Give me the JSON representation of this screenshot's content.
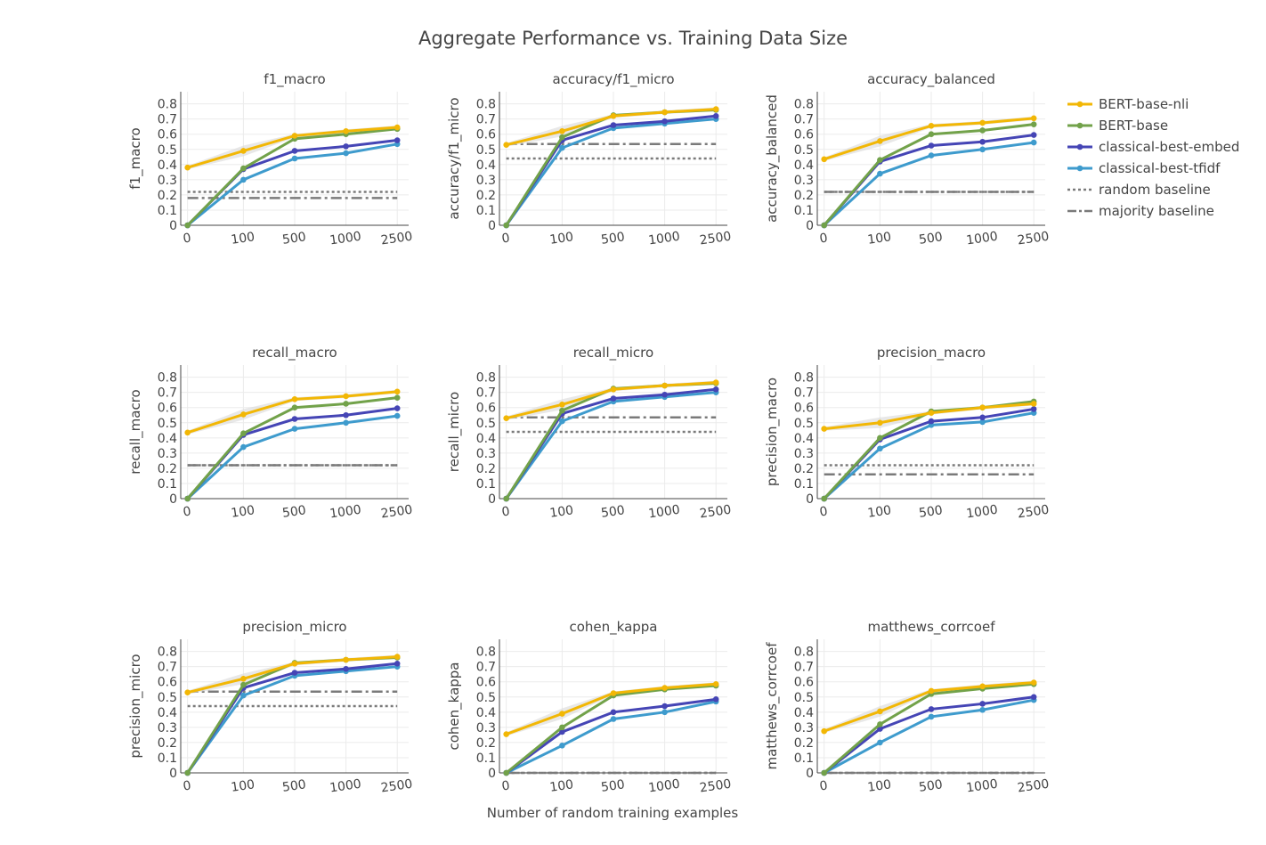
{
  "title": "Aggregate Performance vs. Training Data Size",
  "xlabel": "Number of random training examples",
  "colors": {
    "BERT-base-nli": "#f2b705",
    "BERT-base": "#72a24a",
    "classical-best-embed": "#4545b5",
    "classical-best-tfidf": "#3e9bcd",
    "random baseline": "#7a7a7a",
    "majority baseline": "#7a7a7a",
    "band": "#d9d9d9"
  },
  "legend": [
    {
      "name": "BERT-base-nli",
      "style": "line-marker"
    },
    {
      "name": "BERT-base",
      "style": "line-marker"
    },
    {
      "name": "classical-best-embed",
      "style": "line-marker"
    },
    {
      "name": "classical-best-tfidf",
      "style": "line-marker"
    },
    {
      "name": "random baseline",
      "style": "dot"
    },
    {
      "name": "majority baseline",
      "style": "dashdot"
    }
  ],
  "chart_data": [
    {
      "type": "line",
      "title": "f1_macro",
      "ylabel": "f1_macro",
      "categories": [
        "0",
        "100",
        "500",
        "1000",
        "2500"
      ],
      "ylim": [
        0,
        0.88
      ],
      "yticks": [
        "0",
        "0.1",
        "0.2",
        "0.3",
        "0.4",
        "0.5",
        "0.6",
        "0.7",
        "0.8"
      ],
      "series": [
        {
          "name": "BERT-base-nli",
          "values": [
            0.38,
            0.49,
            0.59,
            0.62,
            0.645
          ]
        },
        {
          "name": "BERT-base",
          "values": [
            0.0,
            0.375,
            0.57,
            0.6,
            0.635
          ]
        },
        {
          "name": "classical-best-embed",
          "values": [
            0.0,
            0.37,
            0.49,
            0.52,
            0.56
          ]
        },
        {
          "name": "classical-best-tfidf",
          "values": [
            0.0,
            0.3,
            0.44,
            0.475,
            0.535
          ]
        }
      ],
      "random_baseline": 0.22,
      "majority_baseline": 0.18
    },
    {
      "type": "line",
      "title": "accuracy/f1_micro",
      "ylabel": "accuracy/f1_micro",
      "categories": [
        "0",
        "100",
        "500",
        "1000",
        "2500"
      ],
      "ylim": [
        0,
        0.88
      ],
      "yticks": [
        "0",
        "0.1",
        "0.2",
        "0.3",
        "0.4",
        "0.5",
        "0.6",
        "0.7",
        "0.8"
      ],
      "series": [
        {
          "name": "BERT-base-nli",
          "values": [
            0.53,
            0.62,
            0.72,
            0.745,
            0.765
          ]
        },
        {
          "name": "BERT-base",
          "values": [
            0.0,
            0.58,
            0.725,
            0.745,
            0.76
          ]
        },
        {
          "name": "classical-best-embed",
          "values": [
            0.0,
            0.56,
            0.66,
            0.685,
            0.72
          ]
        },
        {
          "name": "classical-best-tfidf",
          "values": [
            0.0,
            0.51,
            0.64,
            0.67,
            0.7
          ]
        }
      ],
      "random_baseline": 0.44,
      "majority_baseline": 0.535
    },
    {
      "type": "line",
      "title": "accuracy_balanced",
      "ylabel": "accuracy_balanced",
      "categories": [
        "0",
        "100",
        "500",
        "1000",
        "2500"
      ],
      "ylim": [
        0,
        0.88
      ],
      "yticks": [
        "0",
        "0.1",
        "0.2",
        "0.3",
        "0.4",
        "0.5",
        "0.6",
        "0.7",
        "0.8"
      ],
      "series": [
        {
          "name": "BERT-base-nli",
          "values": [
            0.435,
            0.555,
            0.655,
            0.675,
            0.705
          ]
        },
        {
          "name": "BERT-base",
          "values": [
            0.0,
            0.43,
            0.6,
            0.625,
            0.665
          ]
        },
        {
          "name": "classical-best-embed",
          "values": [
            0.0,
            0.42,
            0.525,
            0.55,
            0.595
          ]
        },
        {
          "name": "classical-best-tfidf",
          "values": [
            0.0,
            0.34,
            0.46,
            0.5,
            0.545
          ]
        }
      ],
      "random_baseline": 0.22,
      "majority_baseline": 0.22
    },
    {
      "type": "line",
      "title": "recall_macro",
      "ylabel": "recall_macro",
      "categories": [
        "0",
        "100",
        "500",
        "1000",
        "2500"
      ],
      "ylim": [
        0,
        0.88
      ],
      "yticks": [
        "0",
        "0.1",
        "0.2",
        "0.3",
        "0.4",
        "0.5",
        "0.6",
        "0.7",
        "0.8"
      ],
      "series": [
        {
          "name": "BERT-base-nli",
          "values": [
            0.435,
            0.555,
            0.655,
            0.675,
            0.705
          ]
        },
        {
          "name": "BERT-base",
          "values": [
            0.0,
            0.43,
            0.6,
            0.625,
            0.665
          ]
        },
        {
          "name": "classical-best-embed",
          "values": [
            0.0,
            0.42,
            0.525,
            0.55,
            0.595
          ]
        },
        {
          "name": "classical-best-tfidf",
          "values": [
            0.0,
            0.34,
            0.46,
            0.5,
            0.545
          ]
        }
      ],
      "random_baseline": 0.22,
      "majority_baseline": 0.22
    },
    {
      "type": "line",
      "title": "recall_micro",
      "ylabel": "recall_micro",
      "categories": [
        "0",
        "100",
        "500",
        "1000",
        "2500"
      ],
      "ylim": [
        0,
        0.88
      ],
      "yticks": [
        "0",
        "0.1",
        "0.2",
        "0.3",
        "0.4",
        "0.5",
        "0.6",
        "0.7",
        "0.8"
      ],
      "series": [
        {
          "name": "BERT-base-nli",
          "values": [
            0.53,
            0.62,
            0.72,
            0.745,
            0.765
          ]
        },
        {
          "name": "BERT-base",
          "values": [
            0.0,
            0.58,
            0.725,
            0.745,
            0.76
          ]
        },
        {
          "name": "classical-best-embed",
          "values": [
            0.0,
            0.56,
            0.66,
            0.685,
            0.72
          ]
        },
        {
          "name": "classical-best-tfidf",
          "values": [
            0.0,
            0.51,
            0.64,
            0.67,
            0.7
          ]
        }
      ],
      "random_baseline": 0.44,
      "majority_baseline": 0.535
    },
    {
      "type": "line",
      "title": "precision_macro",
      "ylabel": "precision_macro",
      "categories": [
        "0",
        "100",
        "500",
        "1000",
        "2500"
      ],
      "ylim": [
        0,
        0.88
      ],
      "yticks": [
        "0",
        "0.1",
        "0.2",
        "0.3",
        "0.4",
        "0.5",
        "0.6",
        "0.7",
        "0.8"
      ],
      "series": [
        {
          "name": "BERT-base-nli",
          "values": [
            0.46,
            0.5,
            0.565,
            0.6,
            0.625
          ]
        },
        {
          "name": "BERT-base",
          "values": [
            0.0,
            0.4,
            0.575,
            0.6,
            0.64
          ]
        },
        {
          "name": "classical-best-embed",
          "values": [
            0.0,
            0.39,
            0.51,
            0.535,
            0.59
          ]
        },
        {
          "name": "classical-best-tfidf",
          "values": [
            0.0,
            0.33,
            0.485,
            0.505,
            0.565
          ]
        }
      ],
      "random_baseline": 0.22,
      "majority_baseline": 0.16
    },
    {
      "type": "line",
      "title": "precision_micro",
      "ylabel": "precision_micro",
      "categories": [
        "0",
        "100",
        "500",
        "1000",
        "2500"
      ],
      "ylim": [
        0,
        0.88
      ],
      "yticks": [
        "0",
        "0.1",
        "0.2",
        "0.3",
        "0.4",
        "0.5",
        "0.6",
        "0.7",
        "0.8"
      ],
      "series": [
        {
          "name": "BERT-base-nli",
          "values": [
            0.53,
            0.62,
            0.72,
            0.745,
            0.765
          ]
        },
        {
          "name": "BERT-base",
          "values": [
            0.0,
            0.58,
            0.725,
            0.745,
            0.76
          ]
        },
        {
          "name": "classical-best-embed",
          "values": [
            0.0,
            0.56,
            0.66,
            0.685,
            0.72
          ]
        },
        {
          "name": "classical-best-tfidf",
          "values": [
            0.0,
            0.51,
            0.64,
            0.67,
            0.7
          ]
        }
      ],
      "random_baseline": 0.44,
      "majority_baseline": 0.535
    },
    {
      "type": "line",
      "title": "cohen_kappa",
      "ylabel": "cohen_kappa",
      "categories": [
        "0",
        "100",
        "500",
        "1000",
        "2500"
      ],
      "ylim": [
        0,
        0.88
      ],
      "yticks": [
        "0",
        "0.1",
        "0.2",
        "0.3",
        "0.4",
        "0.5",
        "0.6",
        "0.7",
        "0.8"
      ],
      "series": [
        {
          "name": "BERT-base-nli",
          "values": [
            0.255,
            0.39,
            0.525,
            0.56,
            0.585
          ]
        },
        {
          "name": "BERT-base",
          "values": [
            0.0,
            0.3,
            0.51,
            0.55,
            0.575
          ]
        },
        {
          "name": "classical-best-embed",
          "values": [
            0.0,
            0.27,
            0.4,
            0.44,
            0.485
          ]
        },
        {
          "name": "classical-best-tfidf",
          "values": [
            0.0,
            0.18,
            0.355,
            0.4,
            0.47
          ]
        }
      ],
      "random_baseline": 0.0,
      "majority_baseline": 0.0
    },
    {
      "type": "line",
      "title": "matthews_corrcoef",
      "ylabel": "matthews_corrcoef",
      "categories": [
        "0",
        "100",
        "500",
        "1000",
        "2500"
      ],
      "ylim": [
        0,
        0.88
      ],
      "yticks": [
        "0",
        "0.1",
        "0.2",
        "0.3",
        "0.4",
        "0.5",
        "0.6",
        "0.7",
        "0.8"
      ],
      "series": [
        {
          "name": "BERT-base-nli",
          "values": [
            0.275,
            0.405,
            0.54,
            0.57,
            0.595
          ]
        },
        {
          "name": "BERT-base",
          "values": [
            0.0,
            0.32,
            0.52,
            0.555,
            0.585
          ]
        },
        {
          "name": "classical-best-embed",
          "values": [
            0.0,
            0.29,
            0.42,
            0.455,
            0.5
          ]
        },
        {
          "name": "classical-best-tfidf",
          "values": [
            0.0,
            0.2,
            0.37,
            0.415,
            0.48
          ]
        }
      ],
      "random_baseline": 0.0,
      "majority_baseline": 0.0
    }
  ]
}
